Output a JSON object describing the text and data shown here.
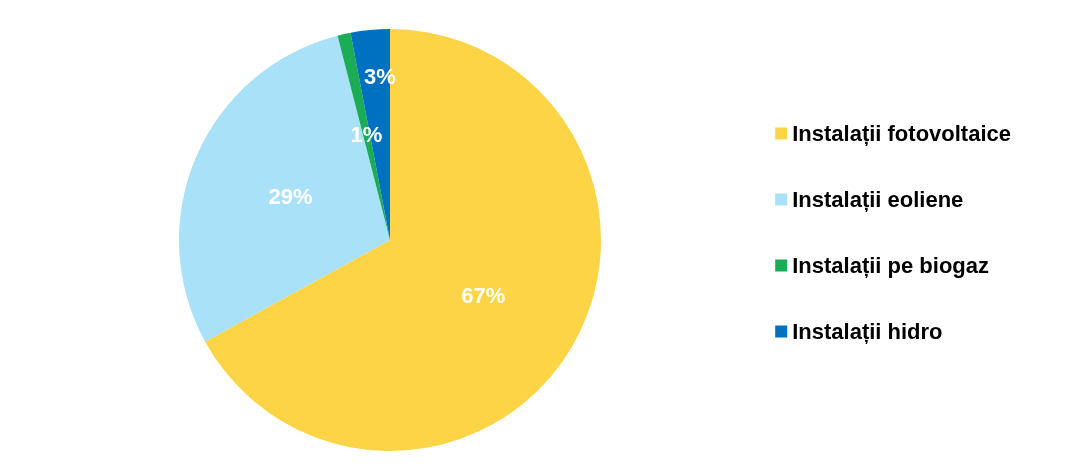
{
  "chart_data": {
    "type": "pie",
    "categories": [
      "Instalații fotovoltaice",
      "Instalații eoliene",
      "Instalații pe biogaz",
      "Instalații hidro"
    ],
    "values": [
      67,
      29,
      1,
      3
    ],
    "value_labels": [
      "67%",
      "29%",
      "1%",
      "3%"
    ],
    "colors": [
      "#fcd446",
      "#a9e1f9",
      "#1aad55",
      "#0070c0"
    ],
    "legend": "right"
  }
}
